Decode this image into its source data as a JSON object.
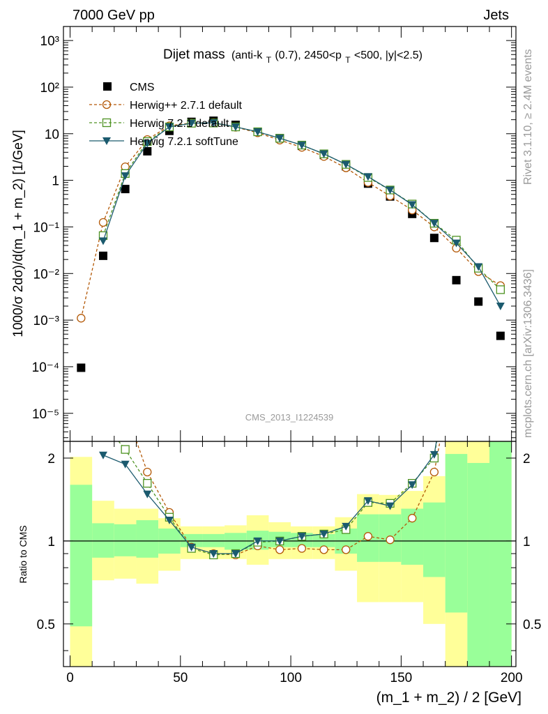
{
  "header": {
    "left": "7000 GeV pp",
    "right": "Jets",
    "side_rivet": "Rivet 3.1.10, ≥ 2.4M events",
    "side_mcplots": "mcplots.cern.ch [arXiv:1306.3436]",
    "watermark": "CMS_2013_I1224539"
  },
  "title": {
    "main": "Dijet mass",
    "sub_prefix": "(anti-k",
    "sub_T1": "T",
    "sub_mid": "(0.7), 2450<p",
    "sub_T2": "T",
    "sub_suffix": "<500, |y|<2.5)"
  },
  "axes": {
    "xlabel": "(m_1 + m_2) / 2 [GeV]",
    "ylabel": "1000/σ 2dσ)/d(m_1 + m_2) [1/GeV]",
    "ratio_ylabel": "Ratio to CMS",
    "xticks": [
      "0",
      "50",
      "100",
      "150",
      "200"
    ],
    "ratio_ticks": [
      "2",
      "1",
      "0.5"
    ],
    "main_ticks": [
      "10⁻⁵",
      "10⁻⁴",
      "10⁻³",
      "10⁻²",
      "10⁻¹",
      "1",
      "10",
      "10²",
      "10³"
    ]
  },
  "legend": {
    "cms": "CMS",
    "h271": "Herwig++ 2.7.1 default",
    "h721": "Herwig 7.2.1 default",
    "h721s": "Herwig 7.2.1 softTune"
  },
  "colors": {
    "cms": "#000000",
    "h271": "#b35806",
    "h721": "#4d9221",
    "h721s": "#1b5a6e",
    "band_outer": "#ffff99",
    "band_inner": "#99ff99"
  },
  "chart_data": {
    "type": "line",
    "x_range": [
      -3,
      202
    ],
    "main_y_log": true,
    "main_y_range": [
      2.5e-06,
      2000
    ],
    "ratio_y_log": true,
    "ratio_y_range": [
      0.35,
      2.3
    ],
    "x": [
      5,
      15,
      25,
      35,
      45,
      55,
      65,
      75,
      85,
      95,
      105,
      115,
      125,
      135,
      145,
      155,
      165,
      175,
      185,
      195
    ],
    "bin_edges": [
      0,
      10,
      20,
      30,
      40,
      50,
      60,
      70,
      80,
      90,
      100,
      110,
      120,
      130,
      140,
      150,
      160,
      170,
      180,
      190,
      200
    ],
    "series": [
      {
        "name": "CMS",
        "values": [
          9.5e-05,
          0.024,
          0.65,
          4.2,
          11.5,
          18,
          19,
          15.5,
          11,
          8,
          5.5,
          3.5,
          2.0,
          0.85,
          0.45,
          0.19,
          0.058,
          0.0072,
          0.0025,
          0.00046
        ]
      },
      {
        "name": "Herwig++ 2.7.1 default",
        "values": [
          0.0011,
          0.125,
          1.95,
          7.5,
          14.8,
          17,
          17.2,
          13.8,
          10.5,
          7.3,
          5.1,
          3.25,
          1.85,
          0.9,
          0.46,
          0.23,
          0.1,
          0.035,
          0.011,
          0.0055
        ]
      },
      {
        "name": "Herwig 7.2.1 default",
        "values": [
          null,
          0.065,
          1.4,
          6.8,
          14,
          16.8,
          17,
          14,
          11,
          8,
          5.7,
          3.7,
          2.2,
          1.15,
          0.62,
          0.31,
          0.12,
          0.052,
          0.013,
          0.0045
        ]
      },
      {
        "name": "Herwig 7.2.1 softTune",
        "values": [
          null,
          0.05,
          1.25,
          6.2,
          14,
          16.8,
          17.2,
          14,
          11,
          8,
          5.7,
          3.7,
          2.2,
          1.2,
          0.62,
          0.3,
          0.12,
          0.045,
          0.014,
          0.002
        ]
      }
    ],
    "ratios": [
      {
        "name": "Herwig++ 2.7.1 default",
        "values": [
          null,
          5.2,
          3.0,
          1.78,
          1.27,
          0.95,
          0.9,
          0.89,
          0.96,
          0.93,
          0.94,
          0.93,
          0.93,
          1.04,
          1.01,
          1.21,
          1.78,
          4.8,
          4.4,
          12
        ]
      },
      {
        "name": "Herwig 7.2.1 default",
        "values": [
          null,
          2.7,
          2.15,
          1.62,
          1.22,
          0.94,
          0.89,
          0.9,
          0.99,
          1.0,
          1.04,
          1.06,
          1.1,
          1.38,
          1.37,
          1.62,
          2.0,
          7.2,
          5.2,
          9.8
        ]
      },
      {
        "name": "Herwig 7.2.1 softTune",
        "values": [
          null,
          2.05,
          1.9,
          1.48,
          1.19,
          0.95,
          0.9,
          0.9,
          1.0,
          1.0,
          1.04,
          1.06,
          1.13,
          1.4,
          1.34,
          1.6,
          2.06,
          6.3,
          5.6,
          4.3
        ]
      }
    ],
    "band_outer": {
      "low": [
        0.35,
        0.72,
        0.73,
        0.7,
        0.78,
        0.86,
        0.86,
        0.86,
        0.82,
        0.86,
        0.86,
        0.86,
        0.78,
        0.6,
        0.6,
        0.6,
        0.5,
        0.35,
        0.35,
        0.35
      ],
      "high": [
        2.02,
        1.4,
        1.31,
        1.31,
        1.21,
        1.13,
        1.13,
        1.14,
        1.24,
        1.17,
        1.13,
        1.13,
        1.22,
        1.48,
        1.47,
        1.52,
        1.72,
        2.3,
        2.3,
        2.3
      ]
    },
    "band_inner": {
      "low": [
        0.49,
        0.87,
        0.88,
        0.87,
        0.9,
        0.95,
        0.95,
        0.93,
        0.93,
        0.95,
        0.95,
        0.95,
        0.9,
        0.84,
        0.84,
        0.82,
        0.74,
        0.55,
        0.35,
        0.35
      ],
      "high": [
        1.6,
        1.16,
        1.15,
        1.19,
        1.11,
        1.06,
        1.06,
        1.07,
        1.09,
        1.08,
        1.07,
        1.06,
        1.11,
        1.25,
        1.25,
        1.31,
        1.38,
        2.07,
        1.92,
        2.3
      ]
    }
  }
}
